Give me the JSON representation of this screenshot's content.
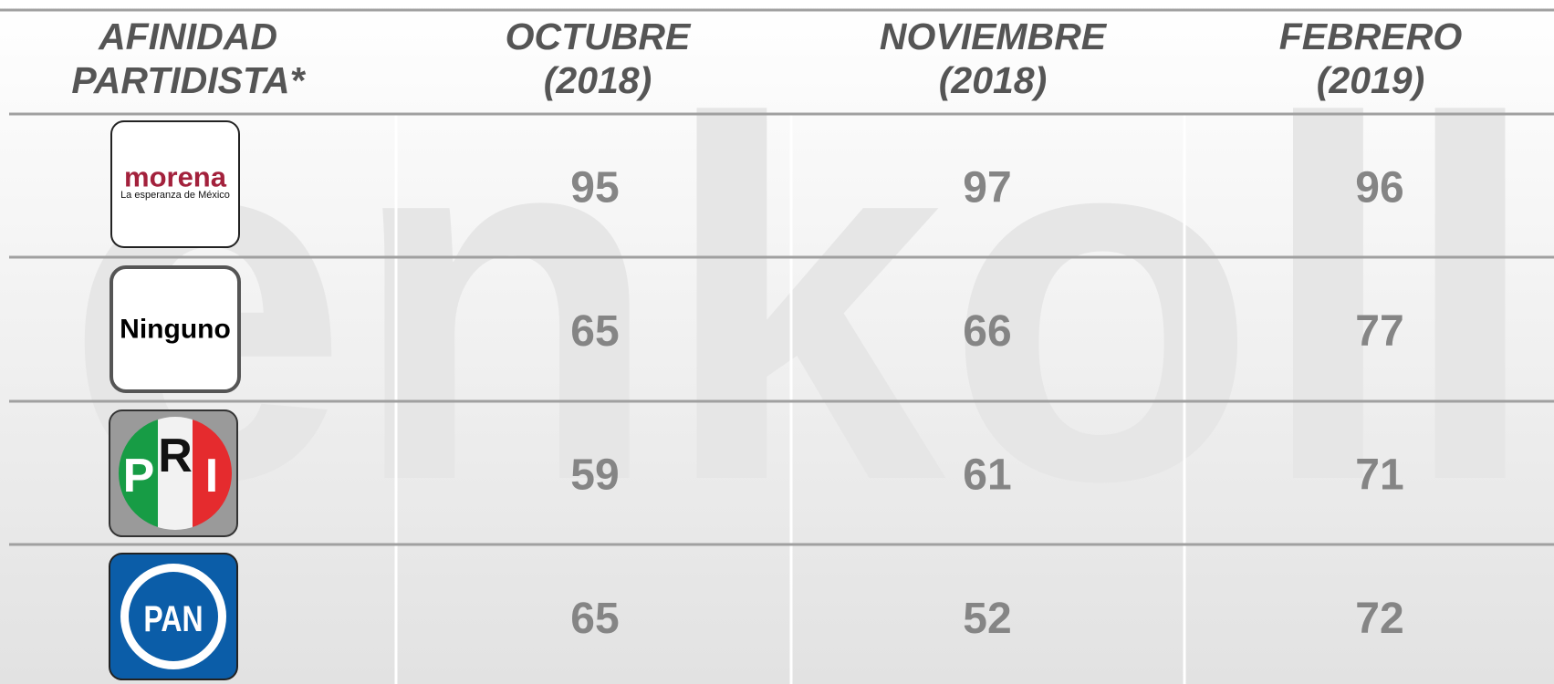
{
  "watermark": "enkoll",
  "table": {
    "header": [
      [
        "AFINIDAD",
        "PARTIDISTA*"
      ],
      [
        "OCTUBRE",
        "(2018)"
      ],
      [
        "NOVIEMBRE",
        "(2018)"
      ],
      [
        "FEBRERO",
        "(2019)"
      ]
    ],
    "rows": [
      {
        "logo": [
          "morena",
          "La esperanza de México"
        ],
        "values": [
          95,
          97,
          96
        ]
      },
      {
        "logo": [
          "Ninguno"
        ],
        "values": [
          65,
          66,
          77
        ]
      },
      {
        "logo": [
          "P",
          "R",
          "I"
        ],
        "values": [
          59,
          61,
          71
        ]
      },
      {
        "logo": [
          "PAN"
        ],
        "values": [
          65,
          52,
          72
        ]
      }
    ]
  }
}
